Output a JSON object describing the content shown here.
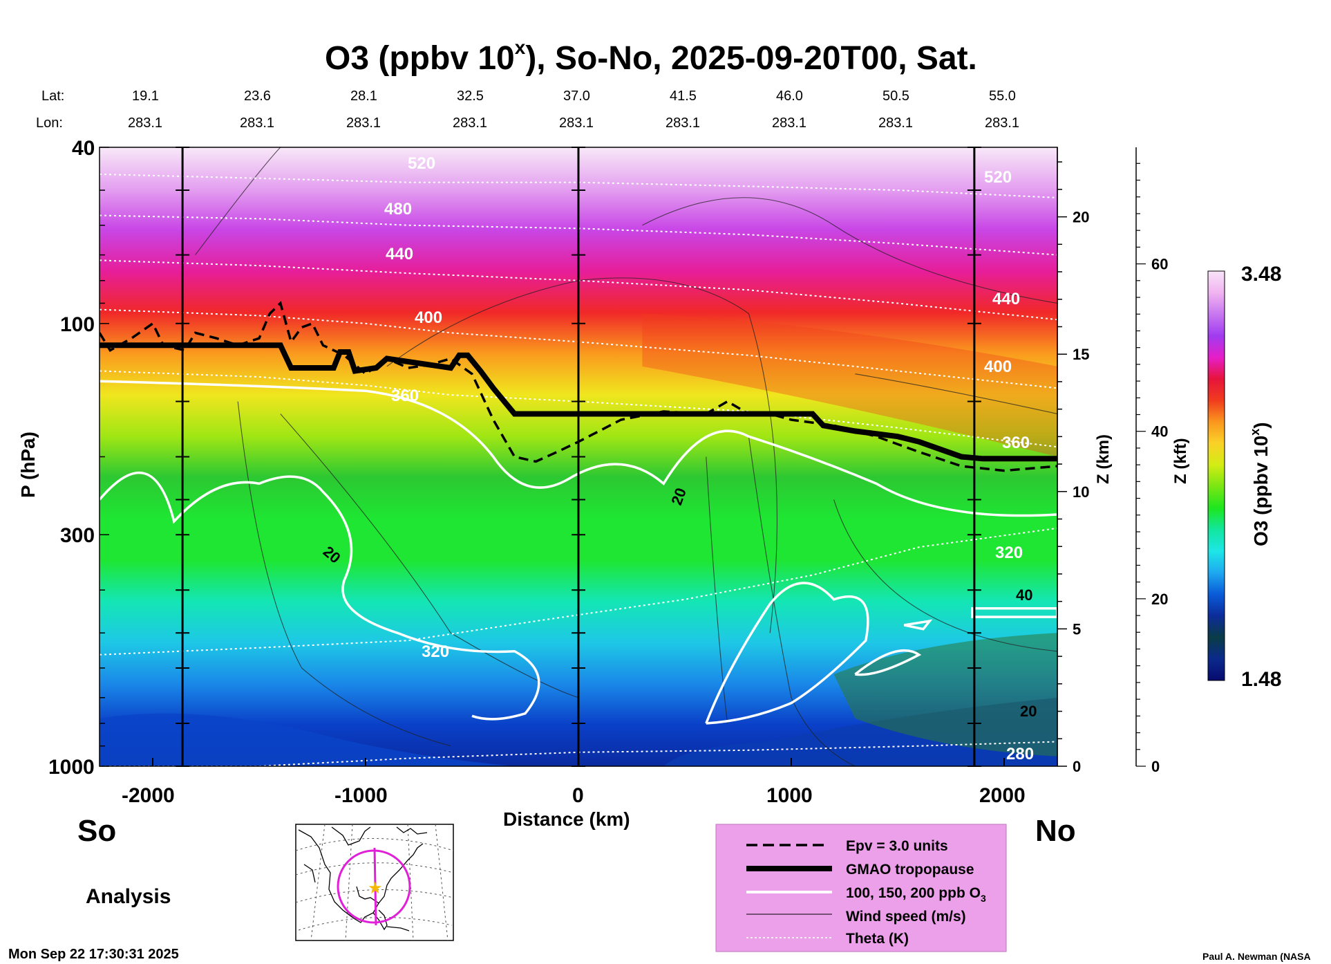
{
  "chart_data": {
    "type": "heatmap",
    "title": "O3 (ppbv 10",
    "title_superscript": "x",
    "title_suffix": "), So-No, 2025-09-20T00, Sat.",
    "xlabel": "Distance (km)",
    "ylabel": "P (hPa)",
    "z_label": "Z (km)",
    "zkft_label": "Z (kft)",
    "colorbar_label": "O3 (ppbv 10",
    "colorbar_label_sup": "x",
    "colorbar_label_suffix": ")",
    "colorbar_range": [
      1.48,
      3.48
    ],
    "colorbar_max_label": "3.48",
    "colorbar_min_label": "1.48",
    "colorbar_stops": [
      "#080a6e",
      "#0a2a8c",
      "#0a3c46",
      "#0c2c9a",
      "#0a5cd8",
      "#1ea8f0",
      "#1ee6e6",
      "#12e6a0",
      "#1ee61e",
      "#7ae614",
      "#d2ec14",
      "#fad228",
      "#fa961e",
      "#f03c1e",
      "#e6143c",
      "#e61ec8",
      "#a03cf0",
      "#c878f0",
      "#f0b4f0",
      "#f8e4f8"
    ],
    "x_range": [
      -2250,
      2250
    ],
    "x_ticks": [
      -2000,
      -1000,
      0,
      1000,
      2000
    ],
    "x_tick_labels": [
      "-2000",
      "-1000",
      "0",
      "1000",
      "2000"
    ],
    "p_range": [
      1000,
      40
    ],
    "p_tick_labels": [
      "40",
      "100",
      "300",
      "1000"
    ],
    "p_tick_values": [
      40,
      100,
      300,
      1000
    ],
    "z_tick_labels": [
      "0",
      "5",
      "10",
      "15",
      "20"
    ],
    "z_tick_values": [
      0,
      5,
      10,
      15,
      20
    ],
    "zkft_tick_labels": [
      "0",
      "20",
      "40",
      "60"
    ],
    "zkft_tick_values": [
      0,
      20,
      40,
      60
    ],
    "lat_label": "Lat:",
    "lon_label": "Lon:",
    "lats": [
      "19.1",
      "23.6",
      "28.1",
      "32.5",
      "37.0",
      "41.5",
      "46.0",
      "50.5",
      "55.0"
    ],
    "lons": [
      "283.1",
      "283.1",
      "283.1",
      "283.1",
      "283.1",
      "283.1",
      "283.1",
      "283.1",
      "283.1"
    ],
    "station_distances_km": [
      -2000,
      -1500,
      -1000,
      -500,
      0,
      500,
      1000,
      1500,
      2000
    ],
    "vertical_lines_km": [
      -1860,
      0,
      1860
    ],
    "theta_contours": [
      {
        "label": "280",
        "x": [
          -2250,
          -1500,
          -800,
          0,
          800,
          1600,
          2250
        ],
        "p": [
          1000,
          1000,
          960,
          930,
          920,
          900,
          880
        ]
      },
      {
        "label": "320",
        "x": [
          -2250,
          -1500,
          -800,
          -200,
          500,
          1100,
          1600,
          2250
        ],
        "p": [
          560,
          540,
          520,
          470,
          420,
          370,
          320,
          290
        ]
      },
      {
        "label": "360",
        "x": [
          -2250,
          -1500,
          -1000,
          -600,
          0,
          800,
          1500,
          2250
        ],
        "p": [
          128,
          132,
          138,
          145,
          150,
          158,
          172,
          190
        ]
      },
      {
        "label": "400",
        "x": [
          -2250,
          -1500,
          -1000,
          -600,
          0,
          800,
          1500,
          2250
        ],
        "p": [
          93,
          96,
          100,
          105,
          110,
          118,
          128,
          140
        ]
      },
      {
        "label": "440",
        "x": [
          -2250,
          -1500,
          -800,
          0,
          800,
          1500,
          2250
        ],
        "p": [
          72,
          74,
          77,
          80,
          84,
          90,
          98
        ]
      },
      {
        "label": "480",
        "x": [
          -2250,
          -1500,
          -800,
          0,
          800,
          1500,
          2250
        ],
        "p": [
          57,
          58,
          60,
          61,
          63,
          66,
          70
        ]
      },
      {
        "label": "520",
        "x": [
          -2250,
          -1500,
          -800,
          0,
          800,
          1500,
          2250
        ],
        "p": [
          46,
          47,
          48,
          48,
          49,
          50,
          52
        ]
      }
    ],
    "tropopause": {
      "x": [
        -2250,
        -1400,
        -1350,
        -1150,
        -1120,
        -1080,
        -1050,
        -950,
        -900,
        -600,
        -560,
        -520,
        -460,
        -400,
        -300,
        0,
        500,
        1000,
        1100,
        1150,
        1300,
        1500,
        1600,
        1800,
        1900,
        2250
      ],
      "p": [
        112,
        112,
        126,
        126,
        116,
        116,
        128,
        126,
        120,
        126,
        118,
        118,
        128,
        140,
        160,
        160,
        160,
        160,
        160,
        170,
        175,
        180,
        185,
        200,
        202,
        202
      ]
    },
    "epv": {
      "x": [
        -2250,
        -2200,
        -2100,
        -2000,
        -1950,
        -1850,
        -1800,
        -1700,
        -1600,
        -1500,
        -1450,
        -1400,
        -1350,
        -1300,
        -1250,
        -1200,
        -1100,
        -1000,
        -950,
        -900,
        -800,
        -700,
        -600,
        -500,
        -400,
        -300,
        -200,
        -100,
        0,
        200,
        400,
        600,
        700,
        800,
        900,
        1000,
        1200,
        1400,
        1600,
        1800,
        2000,
        2250
      ],
      "p": [
        105,
        115,
        108,
        100,
        112,
        115,
        105,
        108,
        112,
        108,
        95,
        90,
        110,
        102,
        100,
        112,
        118,
        130,
        125,
        120,
        126,
        124,
        120,
        130,
        165,
        200,
        205,
        195,
        185,
        165,
        158,
        160,
        150,
        160,
        160,
        165,
        170,
        180,
        195,
        210,
        215,
        210
      ]
    },
    "ozone_isolines_ppb": [
      100,
      150,
      200
    ],
    "wind_speed_contour_labels": [
      "20",
      "20",
      "40",
      "20"
    ],
    "theta_label_upper": "520",
    "theta_label_right_upper": "440",
    "theta_label_right_mid": "400",
    "theta_label_right_low": "360",
    "theta_label_right_320": "320",
    "theta_label_left_480": "480",
    "theta_label_left_440": "440",
    "theta_label_mid_400": "400",
    "theta_label_mid_360": "360",
    "theta_label_mid_320": "320",
    "theta_label_bottom_280": "280",
    "theta_label_right_520": "520"
  },
  "labels": {
    "south": "So",
    "north": "No",
    "analysis": "Analysis",
    "timestamp": "Mon Sep 22 17:30:31 2025",
    "credit": "Paul A. Newman (NASA"
  },
  "legend": {
    "items": [
      {
        "label": "Epv = 3.0 units"
      },
      {
        "label": "GMAO tropopause"
      },
      {
        "label": "100, 150, 200 ppb O",
        "sub": "3"
      },
      {
        "label": "Wind speed (m/s)"
      },
      {
        "label": "Theta (K)"
      }
    ],
    "background": "#eda0ea"
  }
}
